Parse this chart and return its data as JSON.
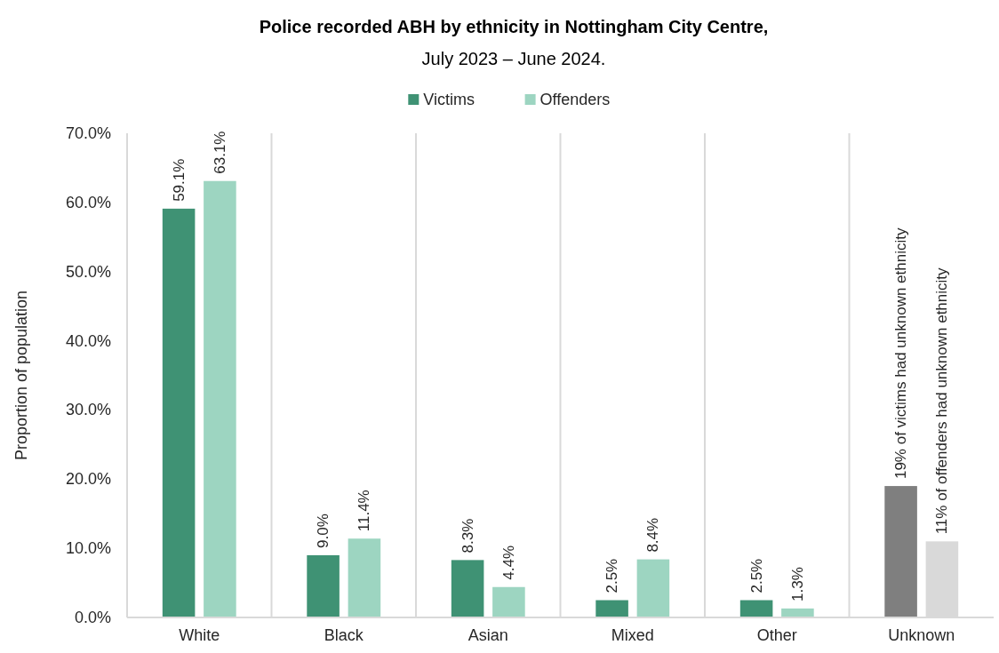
{
  "chart_data": {
    "type": "bar",
    "title": "Police recorded ABH by ethnicity in Nottingham City Centre,",
    "subtitle": "July 2023 – June 2024.",
    "ylabel": "Proportion of population",
    "categories": [
      "White",
      "Black",
      "Asian",
      "Mixed",
      "Other",
      "Unknown"
    ],
    "series": [
      {
        "name": "Victims",
        "color": "#3f9274",
        "colors": [
          "#3f9274",
          "#3f9274",
          "#3f9274",
          "#3f9274",
          "#3f9274",
          "#7f7f7f"
        ],
        "values": [
          59.1,
          9.0,
          8.3,
          2.5,
          2.5,
          19
        ],
        "value_labels": [
          "59.1%",
          "9.0%",
          "8.3%",
          "2.5%",
          "2.5%",
          "19% of victims had unknown ethnicity"
        ]
      },
      {
        "name": "Offenders",
        "color": "#9dd5c1",
        "colors": [
          "#9dd5c1",
          "#9dd5c1",
          "#9dd5c1",
          "#9dd5c1",
          "#9dd5c1",
          "#d9d9d9"
        ],
        "values": [
          63.1,
          11.4,
          4.4,
          8.4,
          1.3,
          11
        ],
        "value_labels": [
          "63.1%",
          "11.4%",
          "4.4%",
          "8.4%",
          "1.3%",
          "11% of offenders had unknown ethnicity"
        ]
      }
    ],
    "ylim": [
      0,
      70
    ],
    "yticks": [
      {
        "value": 0,
        "label": "0.0%"
      },
      {
        "value": 10,
        "label": "10.0%"
      },
      {
        "value": 20,
        "label": "20.0%"
      },
      {
        "value": 30,
        "label": "30.0%"
      },
      {
        "value": 40,
        "label": "40.0%"
      },
      {
        "value": 50,
        "label": "50.0%"
      },
      {
        "value": 60,
        "label": "60.0%"
      },
      {
        "value": 70,
        "label": "70.0%"
      }
    ],
    "grid": "x",
    "legend": "top"
  }
}
